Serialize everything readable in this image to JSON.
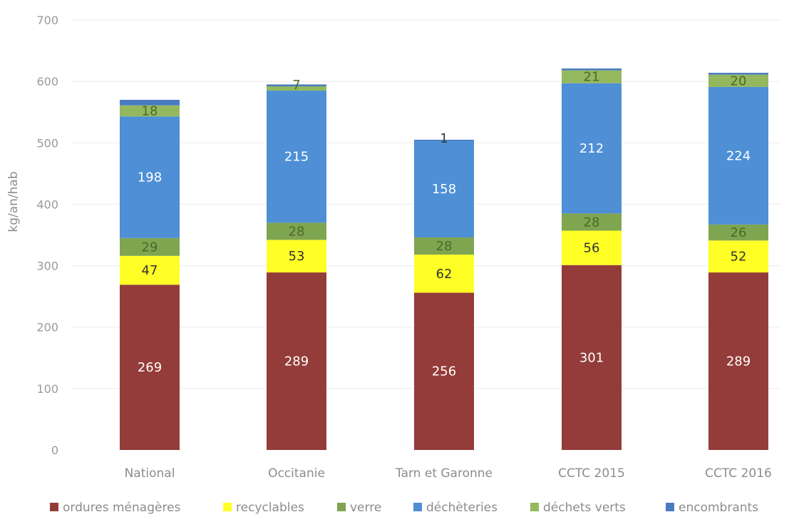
{
  "chart_data": {
    "type": "bar",
    "stacked": true,
    "title": "",
    "xlabel": "",
    "ylabel": "kg/an/hab",
    "ylim": [
      0,
      700
    ],
    "yticks": [
      0,
      100,
      200,
      300,
      400,
      500,
      600,
      700
    ],
    "grid": true,
    "legend_position": "bottom",
    "categories": [
      "National",
      "Occitanie",
      "Tarn et Garonne",
      "CCTC 2015",
      "CCTC 2016"
    ],
    "series": [
      {
        "name": "ordures ménagères",
        "color": "#943c3a",
        "label_color": "#ffffff",
        "values": [
          269,
          289,
          256,
          301,
          289
        ],
        "labels": [
          "269",
          "289",
          "256",
          "301",
          "289"
        ]
      },
      {
        "name": "recyclables",
        "color": "#ffff26",
        "label_color": "#333333",
        "values": [
          47,
          53,
          62,
          56,
          52
        ],
        "labels": [
          "47",
          "53",
          "62",
          "56",
          "52"
        ]
      },
      {
        "name": "verre",
        "color": "#7fa550",
        "label_color": "#4a6a2a",
        "values": [
          29,
          28,
          28,
          28,
          26
        ],
        "labels": [
          "29",
          "28",
          "28",
          "28",
          "26"
        ]
      },
      {
        "name": "déchèteries",
        "color": "#4e8fd6",
        "label_color": "#ffffff",
        "values": [
          198,
          215,
          158,
          212,
          224
        ],
        "labels": [
          "198",
          "215",
          "158",
          "212",
          "224"
        ]
      },
      {
        "name": "déchets verts",
        "color": "#93b85e",
        "label_color": "#4a6a2a",
        "values": [
          18,
          7,
          0,
          21,
          20
        ],
        "labels": [
          "18",
          "7",
          "",
          "21",
          "20"
        ]
      },
      {
        "name": "encombrants",
        "color": "#4a7bc0",
        "label_color": "#333333",
        "values": [
          9,
          3,
          1,
          3,
          3
        ],
        "labels": [
          "",
          "",
          "1",
          "",
          ""
        ]
      }
    ]
  }
}
